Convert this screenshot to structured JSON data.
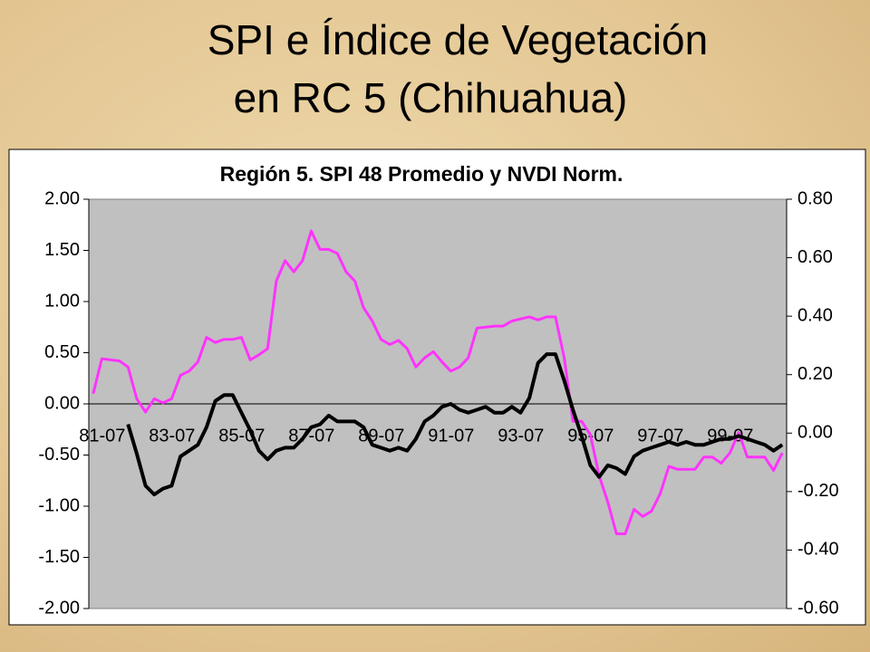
{
  "slide": {
    "title": [
      "SPI e Índice de Vegetación",
      "en RC 5 (Chihuahua)"
    ]
  },
  "chart_data": {
    "type": "line",
    "title": "Región 5. SPI 48 Promedio y NVDI Norm.",
    "categories": [
      "81-07",
      null,
      null,
      null,
      null,
      null,
      null,
      null,
      "83-07",
      null,
      null,
      null,
      null,
      null,
      null,
      null,
      "85-07",
      null,
      null,
      null,
      null,
      null,
      null,
      null,
      "87-07",
      null,
      null,
      null,
      null,
      null,
      null,
      null,
      "89-07",
      null,
      null,
      null,
      null,
      null,
      null,
      null,
      "91-07",
      null,
      null,
      null,
      null,
      null,
      null,
      null,
      "93-07",
      null,
      null,
      null,
      null,
      null,
      null,
      null,
      "95-07",
      null,
      null,
      null,
      null,
      null,
      null,
      null,
      "97-07",
      null,
      null,
      null,
      null,
      null,
      null,
      null,
      "99-07",
      null,
      null,
      null,
      null,
      null,
      null,
      null
    ],
    "series": [
      {
        "color": "#ff33ff",
        "axis": "y",
        "values": [
          0.1,
          0.44,
          0.43,
          0.42,
          0.36,
          0.05,
          -0.08,
          0.05,
          0.01,
          0.05,
          0.28,
          0.32,
          0.41,
          0.65,
          0.6,
          0.63,
          0.63,
          0.65,
          0.43,
          0.48,
          0.54,
          1.2,
          1.4,
          1.29,
          1.4,
          1.69,
          1.51,
          1.51,
          1.47,
          1.29,
          1.2,
          0.94,
          0.81,
          0.63,
          0.58,
          0.62,
          0.54,
          0.36,
          0.45,
          0.51,
          0.41,
          0.32,
          0.36,
          0.45,
          0.74,
          0.75,
          0.76,
          0.76,
          0.81,
          0.83,
          0.85,
          0.82,
          0.85,
          0.85,
          0.45,
          -0.17,
          -0.17,
          -0.3,
          -0.7,
          -0.96,
          -1.27,
          -1.27,
          -1.03,
          -1.1,
          -1.05,
          -0.88,
          -0.61,
          -0.64,
          -0.64,
          -0.64,
          -0.52,
          -0.52,
          -0.58,
          -0.48,
          -0.28,
          -0.52,
          -0.52,
          -0.52,
          -0.65,
          -0.48
        ]
      },
      {
        "color": "#000000",
        "axis": "y2",
        "values": [
          null,
          null,
          null,
          null,
          0.03,
          -0.07,
          -0.18,
          -0.21,
          -0.19,
          -0.18,
          -0.08,
          -0.06,
          -0.04,
          0.02,
          0.11,
          0.13,
          0.13,
          0.07,
          0.01,
          -0.06,
          -0.09,
          -0.06,
          -0.05,
          -0.05,
          -0.02,
          0.02,
          0.03,
          0.06,
          0.04,
          0.04,
          0.04,
          0.02,
          -0.04,
          -0.05,
          -0.06,
          -0.05,
          -0.06,
          -0.02,
          0.04,
          0.06,
          0.09,
          0.1,
          0.08,
          0.07,
          0.08,
          0.09,
          0.07,
          0.07,
          0.09,
          0.07,
          0.12,
          0.24,
          0.27,
          0.27,
          0.18,
          0.08,
          -0.01,
          -0.11,
          -0.15,
          -0.11,
          -0.12,
          -0.14,
          -0.08,
          -0.06,
          -0.05,
          -0.04,
          -0.03,
          -0.04,
          -0.03,
          -0.04,
          -0.04,
          -0.03,
          -0.02,
          -0.02,
          -0.01,
          -0.02,
          -0.03,
          -0.04,
          -0.06,
          -0.04
        ]
      }
    ],
    "ylim": [
      -2,
      2
    ],
    "yticks": [
      {
        "value": -2,
        "label": "-2.00"
      },
      {
        "value": -1.5,
        "label": "-1.50"
      },
      {
        "value": -1,
        "label": "-1.00"
      },
      {
        "value": -0.5,
        "label": "-0.50"
      },
      {
        "value": 0,
        "label": "0.00"
      },
      {
        "value": 0.5,
        "label": "0.50"
      },
      {
        "value": 1,
        "label": "1.00"
      },
      {
        "value": 1.5,
        "label": "1.50"
      },
      {
        "value": 2,
        "label": "2.00"
      }
    ],
    "y2lim": [
      -0.6,
      0.8
    ],
    "y2ticks": [
      {
        "value": -0.6,
        "label": "-0.60"
      },
      {
        "value": -0.4,
        "label": "-0.40"
      },
      {
        "value": -0.2,
        "label": "-0.20"
      },
      {
        "value": 0,
        "label": "0.00"
      },
      {
        "value": 0.2,
        "label": "0.20"
      },
      {
        "value": 0.4,
        "label": "0.40"
      },
      {
        "value": 0.6,
        "label": "0.60"
      },
      {
        "value": 0.8,
        "label": "0.80"
      }
    ],
    "plot_background": "#c0c0c0"
  }
}
